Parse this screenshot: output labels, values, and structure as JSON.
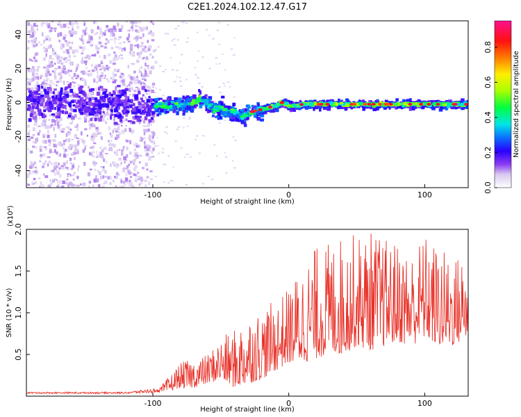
{
  "title": "C2E1.2024.102.12.47.G17",
  "colors": {
    "background": "#ffffff",
    "snr_line": "#e8332a",
    "colormap": [
      "#ffffff",
      "#d8c8f0",
      "#8a3cf0",
      "#2a00ff",
      "#0a70ff",
      "#00e6e6",
      "#00ff40",
      "#a8ff00",
      "#ffee00",
      "#ff7a00",
      "#ff1010",
      "#ff1090"
    ]
  },
  "chart_data": [
    {
      "type": "heatmap",
      "name": "spectrogram",
      "title": "C2E1.2024.102.12.47.G17",
      "xlabel": "Height of straight line (km)",
      "ylabel": "Frequency (Hz)",
      "xlim": [
        -193,
        132
      ],
      "ylim": [
        -50,
        48
      ],
      "x_ticks": [
        -100,
        0,
        100
      ],
      "x_tick_labels": [
        "-100",
        "0",
        "100"
      ],
      "y_ticks": [
        -40,
        -20,
        0,
        20,
        40
      ],
      "y_tick_labels": [
        "-40",
        "-20",
        "0",
        "20",
        "40"
      ],
      "colorbar": {
        "label": "Normalized spectral amplitude",
        "range": [
          0,
          0.95
        ],
        "ticks": [
          0.0,
          0.2,
          0.4,
          0.6,
          0.8
        ],
        "tick_labels": [
          "0.0",
          "0.2",
          "0.4",
          "0.6",
          "0.8"
        ]
      },
      "ridge": {
        "x": [
          -193,
          -150,
          -100,
          -80,
          -70,
          -65,
          -60,
          -55,
          -50,
          -45,
          -40,
          -35,
          -30,
          -25,
          -20,
          -15,
          -10,
          -5,
          0,
          5,
          10,
          20,
          40,
          60,
          80,
          100,
          120,
          132
        ],
        "frequency": [
          0,
          0,
          -2,
          -1,
          0,
          3,
          -1,
          -4,
          -3,
          -6,
          -6,
          -8,
          -6,
          -5,
          -4,
          -3,
          -2,
          0,
          -2,
          -2,
          -1,
          -1,
          -1,
          -1,
          -1,
          -1,
          -1,
          -1
        ]
      },
      "noise_region_x": [
        -193,
        -100
      ]
    },
    {
      "type": "line",
      "name": "snr",
      "xlabel": "Height of straight line (km)",
      "ylabel": "SNR (10 * v/v)",
      "y_multiplier_label": "(x10⁴)",
      "xlim": [
        -193,
        132
      ],
      "ylim": [
        0,
        2.0
      ],
      "x_ticks": [
        -100,
        0,
        100
      ],
      "x_tick_labels": [
        "-100",
        "0",
        "100"
      ],
      "y_ticks": [
        0.5,
        1.0,
        1.5,
        2.0
      ],
      "y_tick_labels": [
        "0.5",
        "1.0",
        "1.5",
        "2.0"
      ],
      "envelope": {
        "x": [
          -193,
          -120,
          -95,
          -90,
          -80,
          -70,
          -60,
          -50,
          -40,
          -30,
          -20,
          -10,
          0,
          10,
          20,
          30,
          40,
          50,
          60,
          70,
          80,
          90,
          100,
          110,
          120,
          132
        ],
        "y_min": [
          0.03,
          0.03,
          0.04,
          0.05,
          0.1,
          0.1,
          0.15,
          0.2,
          0.1,
          0.15,
          0.2,
          0.3,
          0.4,
          0.4,
          0.45,
          0.5,
          0.5,
          0.6,
          0.55,
          0.6,
          0.65,
          0.6,
          0.7,
          0.6,
          0.6,
          0.7
        ],
        "y_max": [
          0.05,
          0.05,
          0.1,
          0.2,
          0.4,
          0.45,
          0.5,
          0.7,
          0.8,
          1.0,
          1.05,
          1.15,
          1.3,
          1.6,
          1.8,
          1.85,
          1.95,
          1.95,
          2.0,
          1.9,
          1.85,
          1.75,
          1.95,
          1.8,
          1.7,
          1.7
        ]
      }
    }
  ]
}
